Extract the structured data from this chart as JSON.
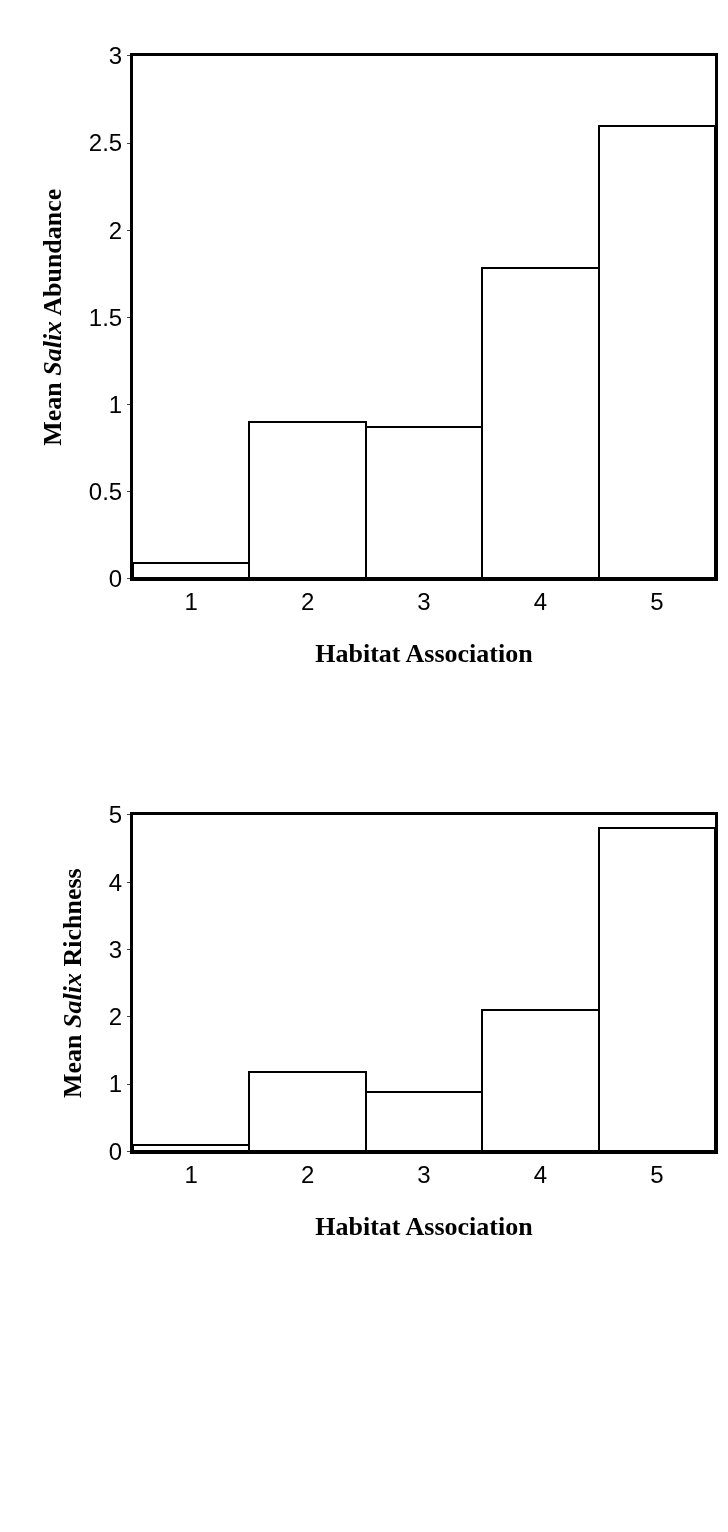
{
  "chart_data": [
    {
      "type": "bar",
      "xlabel": "Habitat Association",
      "ylabel": "Mean Salix Abundance",
      "categories": [
        "1",
        "2",
        "3",
        "4",
        "5"
      ],
      "series": [
        {
          "color": "#ffffff",
          "values": [
            0.09,
            0.9,
            0.87,
            1.78,
            2.6
          ]
        }
      ],
      "ylim": [
        0,
        3
      ],
      "yticks": [
        0,
        0.5,
        1,
        1.5,
        2,
        2.5,
        3
      ]
    },
    {
      "type": "bar",
      "xlabel": "Habitat Association",
      "ylabel": "Mean Salix Richness",
      "categories": [
        "1",
        "2",
        "3",
        "4",
        "5"
      ],
      "series": [
        {
          "color": "#ffffff",
          "values": [
            0.1,
            1.18,
            0.88,
            2.1,
            4.8
          ]
        }
      ],
      "ylim": [
        0,
        5
      ],
      "yticks": [
        0,
        1,
        2,
        3,
        4,
        5
      ]
    }
  ]
}
